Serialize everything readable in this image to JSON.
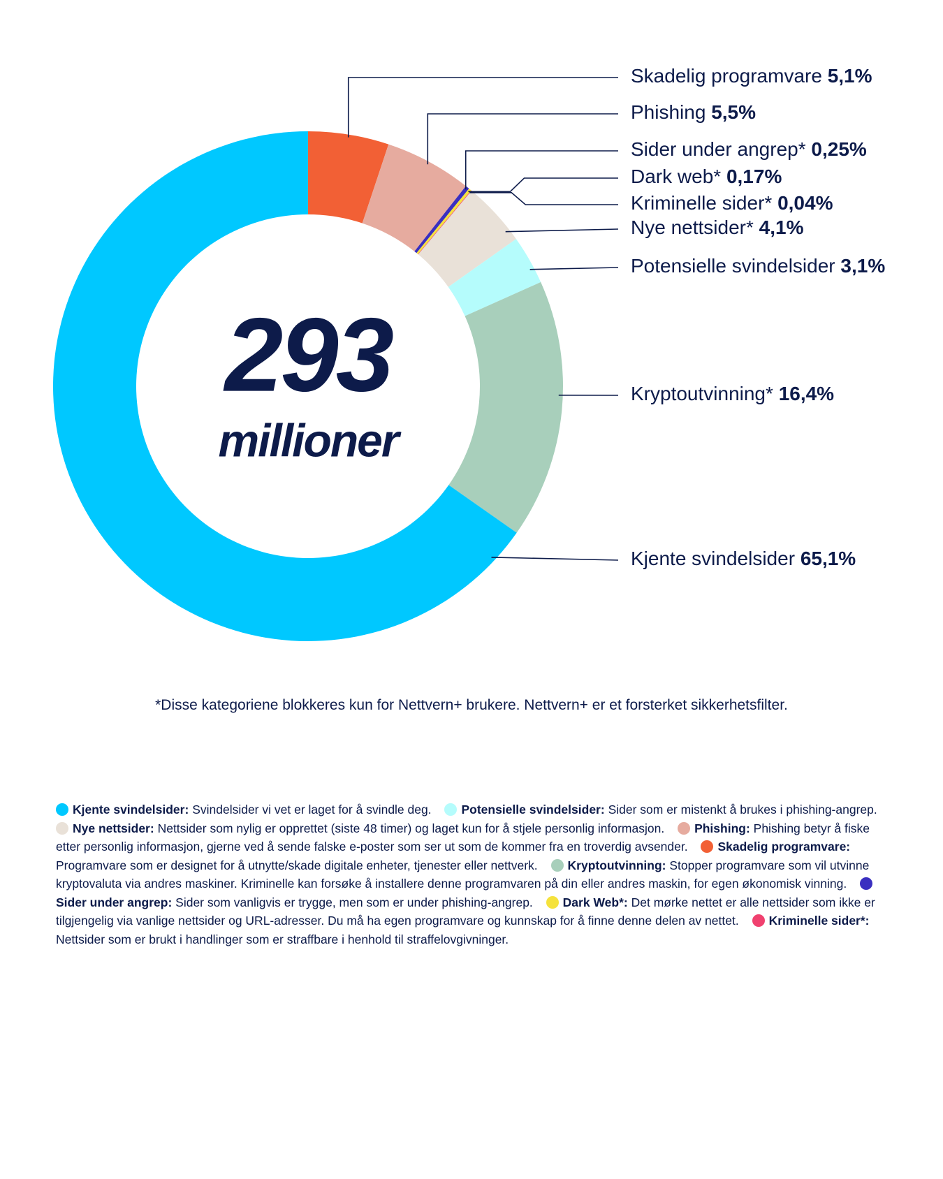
{
  "chart_data": {
    "type": "donut",
    "center_value": "293",
    "center_unit": "millioner",
    "categories": [
      "Skadelig programvare",
      "Phishing",
      "Sider under angrep*",
      "Dark web*",
      "Kriminelle sider*",
      "Nye nettsider*",
      "Potensielle svindelsider",
      "Kryptoutvinning*",
      "Kjente svindelsider"
    ],
    "values": [
      5.1,
      5.5,
      0.25,
      0.17,
      0.04,
      4.1,
      3.1,
      16.4,
      65.1
    ],
    "value_labels": [
      "5,1%",
      "5,5%",
      "0,25%",
      "0,17%",
      "0,04%",
      "4,1%",
      "3,1%",
      "16,4%",
      "65,1%"
    ],
    "colors": [
      "#f26035",
      "#e6ab9f",
      "#3a2fc0",
      "#f5e23c",
      "#f0416f",
      "#e9e1d8",
      "#b5fcfc",
      "#a8cfbb",
      "#00c8ff"
    ],
    "footnote": "*Disse kategoriene blokkeres kun for Nettvern+ brukere. Nettvern+ er et forsterket sikkerhetsfilter.",
    "legend": [
      {
        "term": "Kjente svindelsider:",
        "text": "Svindelsider vi vet er laget for å svindle deg.",
        "color": "#00c8ff"
      },
      {
        "term": "Potensielle svindelsider:",
        "text": "Sider som er mistenkt å brukes i phishing-angrep.",
        "color": "#b5fcfc"
      },
      {
        "term": "Nye nettsider:",
        "text": "Nettsider som nylig er opprettet (siste 48 timer) og laget kun for å stjele personlig informasjon.",
        "color": "#e9e1d8"
      },
      {
        "term": "Phishing:",
        "text": "Phishing betyr å fiske etter personlig informasjon, gjerne ved å sende falske e-poster som ser ut som de kommer fra en troverdig avsender.",
        "color": "#e6ab9f"
      },
      {
        "term": "Skadelig programvare:",
        "text": "Programvare som er designet for å utnytte/skade digitale enheter, tjenester eller nettverk.",
        "color": "#f26035"
      },
      {
        "term": "Kryptoutvinning:",
        "text": "Stopper programvare som vil utvinne kryptovaluta via andres maskiner. Kriminelle kan forsøke å installere denne programvaren på din eller andres maskin, for egen økonomisk vinning.",
        "color": "#a8cfbb"
      },
      {
        "term": "Sider under angrep:",
        "text": "Sider som vanligvis er trygge, men som er under phishing-angrep.",
        "color": "#3a2fc0"
      },
      {
        "term": "Dark Web*:",
        "text": "Det mørke nettet er alle nettsider som ikke er tilgjengelig via vanlige nettsider og URL-adresser. Du må ha egen programvare og kunnskap for å finne denne delen av nettet.",
        "color": "#f5e23c"
      },
      {
        "term": "Kriminelle sider*:",
        "text": "Nettsider som er brukt i  handlinger som er straffbare i henhold til straffelovgivninger.",
        "color": "#f0416f"
      }
    ]
  }
}
